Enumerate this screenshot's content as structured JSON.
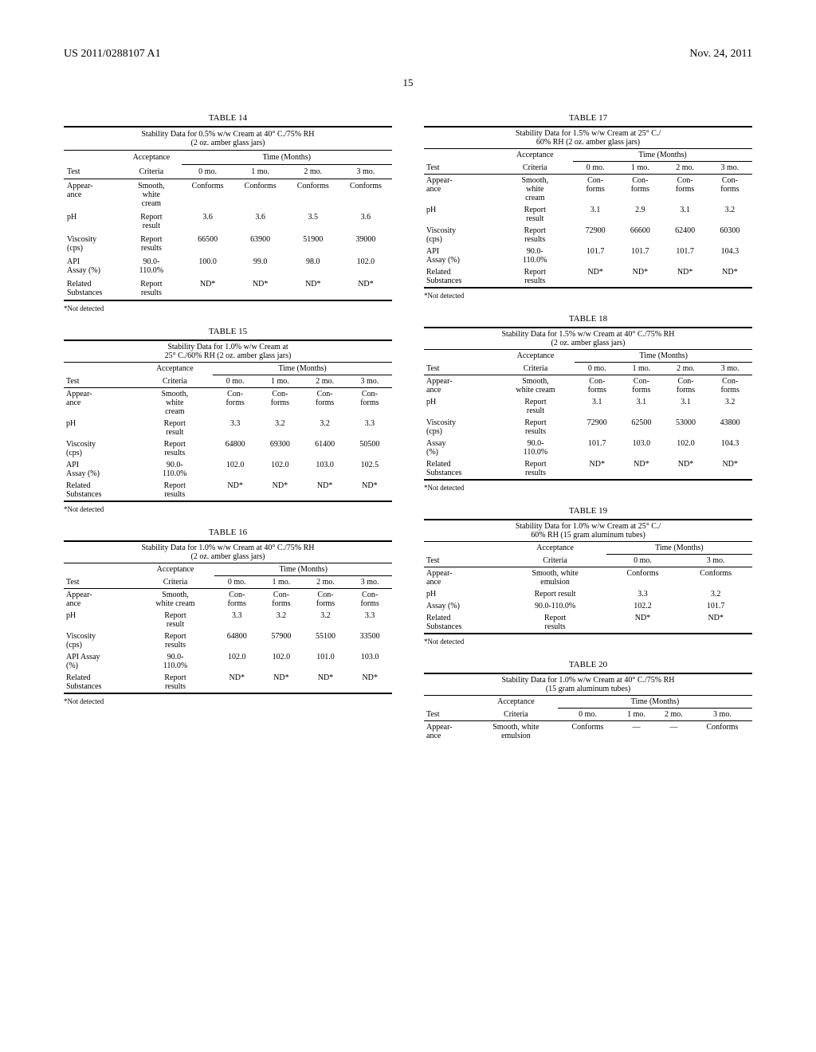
{
  "header": {
    "left": "US 2011/0288107 A1",
    "right": "Nov. 24, 2011"
  },
  "page_number": "15",
  "footnote": "*Not detected",
  "labels": {
    "acceptance": "Acceptance",
    "criteria": "Criteria",
    "time_months": "Time (Months)",
    "test": "Test",
    "m0": "0 mo.",
    "m1": "1 mo.",
    "m2": "2 mo.",
    "m3": "3 mo."
  },
  "tests": {
    "appearance": "Appear-\nance",
    "ph": "pH",
    "viscosity": "Viscosity\n(cps)",
    "api_assay": "API\nAssay (%)",
    "api_assay2": "API Assay\n(%)",
    "assay": "Assay (%)",
    "assay2": "Assay\n(%)",
    "related": "Related\nSubstances"
  },
  "criteria": {
    "smooth_white_cream": "Smooth,\nwhite\ncream",
    "smooth_white_cream2": "Smooth,\nwhite cream",
    "smooth_white_emulsion": "Smooth, white\nemulsion",
    "report_result": "Report\nresult",
    "report_result_1l": "Report result",
    "report_results": "Report\nresults",
    "range90": "90.0-\n110.0%",
    "range90_1l": "90.0-110.0%"
  },
  "t14": {
    "num": "TABLE 14",
    "title": "Stability Data for 0.5% w/w Cream at 40° C./75% RH\n(2 oz. amber glass jars)",
    "rows": {
      "appearance": [
        "Conforms",
        "Conforms",
        "Conforms",
        "Conforms"
      ],
      "ph": [
        "3.6",
        "3.6",
        "3.5",
        "3.6"
      ],
      "viscosity": [
        "66500",
        "63900",
        "51900",
        "39000"
      ],
      "assay": [
        "100.0",
        "99.0",
        "98.0",
        "102.0"
      ],
      "related": [
        "ND*",
        "ND*",
        "ND*",
        "ND*"
      ]
    }
  },
  "t15": {
    "num": "TABLE 15",
    "title": "Stability Data for 1.0% w/w Cream at\n25° C./60% RH (2 oz. amber glass jars)",
    "rows": {
      "appearance": [
        "Con-\nforms",
        "Con-\nforms",
        "Con-\nforms",
        "Con-\nforms"
      ],
      "ph": [
        "3.3",
        "3.2",
        "3.2",
        "3.3"
      ],
      "viscosity": [
        "64800",
        "69300",
        "61400",
        "50500"
      ],
      "assay": [
        "102.0",
        "102.0",
        "103.0",
        "102.5"
      ],
      "related": [
        "ND*",
        "ND*",
        "ND*",
        "ND*"
      ]
    }
  },
  "t16": {
    "num": "TABLE 16",
    "title": "Stability Data for 1.0% w/w Cream at 40° C./75% RH\n(2 oz. amber glass jars)",
    "rows": {
      "appearance": [
        "Con-\nforms",
        "Con-\nforms",
        "Con-\nforms",
        "Con-\nforms"
      ],
      "ph": [
        "3.3",
        "3.2",
        "3.2",
        "3.3"
      ],
      "viscosity": [
        "64800",
        "57900",
        "55100",
        "33500"
      ],
      "assay": [
        "102.0",
        "102.0",
        "101.0",
        "103.0"
      ],
      "related": [
        "ND*",
        "ND*",
        "ND*",
        "ND*"
      ]
    }
  },
  "t17": {
    "num": "TABLE 17",
    "title": "Stability Data for 1.5% w/w Cream at 25° C./\n60% RH (2 oz. amber glass jars)",
    "rows": {
      "appearance": [
        "Con-\nforms",
        "Con-\nforms",
        "Con-\nforms",
        "Con-\nforms"
      ],
      "ph": [
        "3.1",
        "2.9",
        "3.1",
        "3.2"
      ],
      "viscosity": [
        "72900",
        "66600",
        "62400",
        "60300"
      ],
      "assay": [
        "101.7",
        "101.7",
        "101.7",
        "104.3"
      ],
      "related": [
        "ND*",
        "ND*",
        "ND*",
        "ND*"
      ]
    }
  },
  "t18": {
    "num": "TABLE 18",
    "title": "Stability Data for 1.5% w/w Cream at 40° C./75% RH\n(2 oz. amber glass jars)",
    "rows": {
      "appearance": [
        "Con-\nforms",
        "Con-\nforms",
        "Con-\nforms",
        "Con-\nforms"
      ],
      "ph": [
        "3.1",
        "3.1",
        "3.1",
        "3.2"
      ],
      "viscosity": [
        "72900",
        "62500",
        "53000",
        "43800"
      ],
      "assay": [
        "101.7",
        "103.0",
        "102.0",
        "104.3"
      ],
      "related": [
        "ND*",
        "ND*",
        "ND*",
        "ND*"
      ]
    }
  },
  "t19": {
    "num": "TABLE 19",
    "title": "Stability Data for 1.0% w/w Cream at 25° C./\n60% RH (15 gram aluminum tubes)",
    "rows": {
      "appearance": [
        "Conforms",
        "Conforms"
      ],
      "ph": [
        "3.3",
        "3.2"
      ],
      "assay": [
        "102.2",
        "101.7"
      ],
      "related": [
        "ND*",
        "ND*"
      ]
    }
  },
  "t20": {
    "num": "TABLE 20",
    "title": "Stability Data for 1.0% w/w Cream at 40° C./75% RH\n(15 gram aluminum tubes)",
    "rows": {
      "appearance": [
        "Conforms",
        "—",
        "—",
        "Conforms"
      ]
    }
  }
}
